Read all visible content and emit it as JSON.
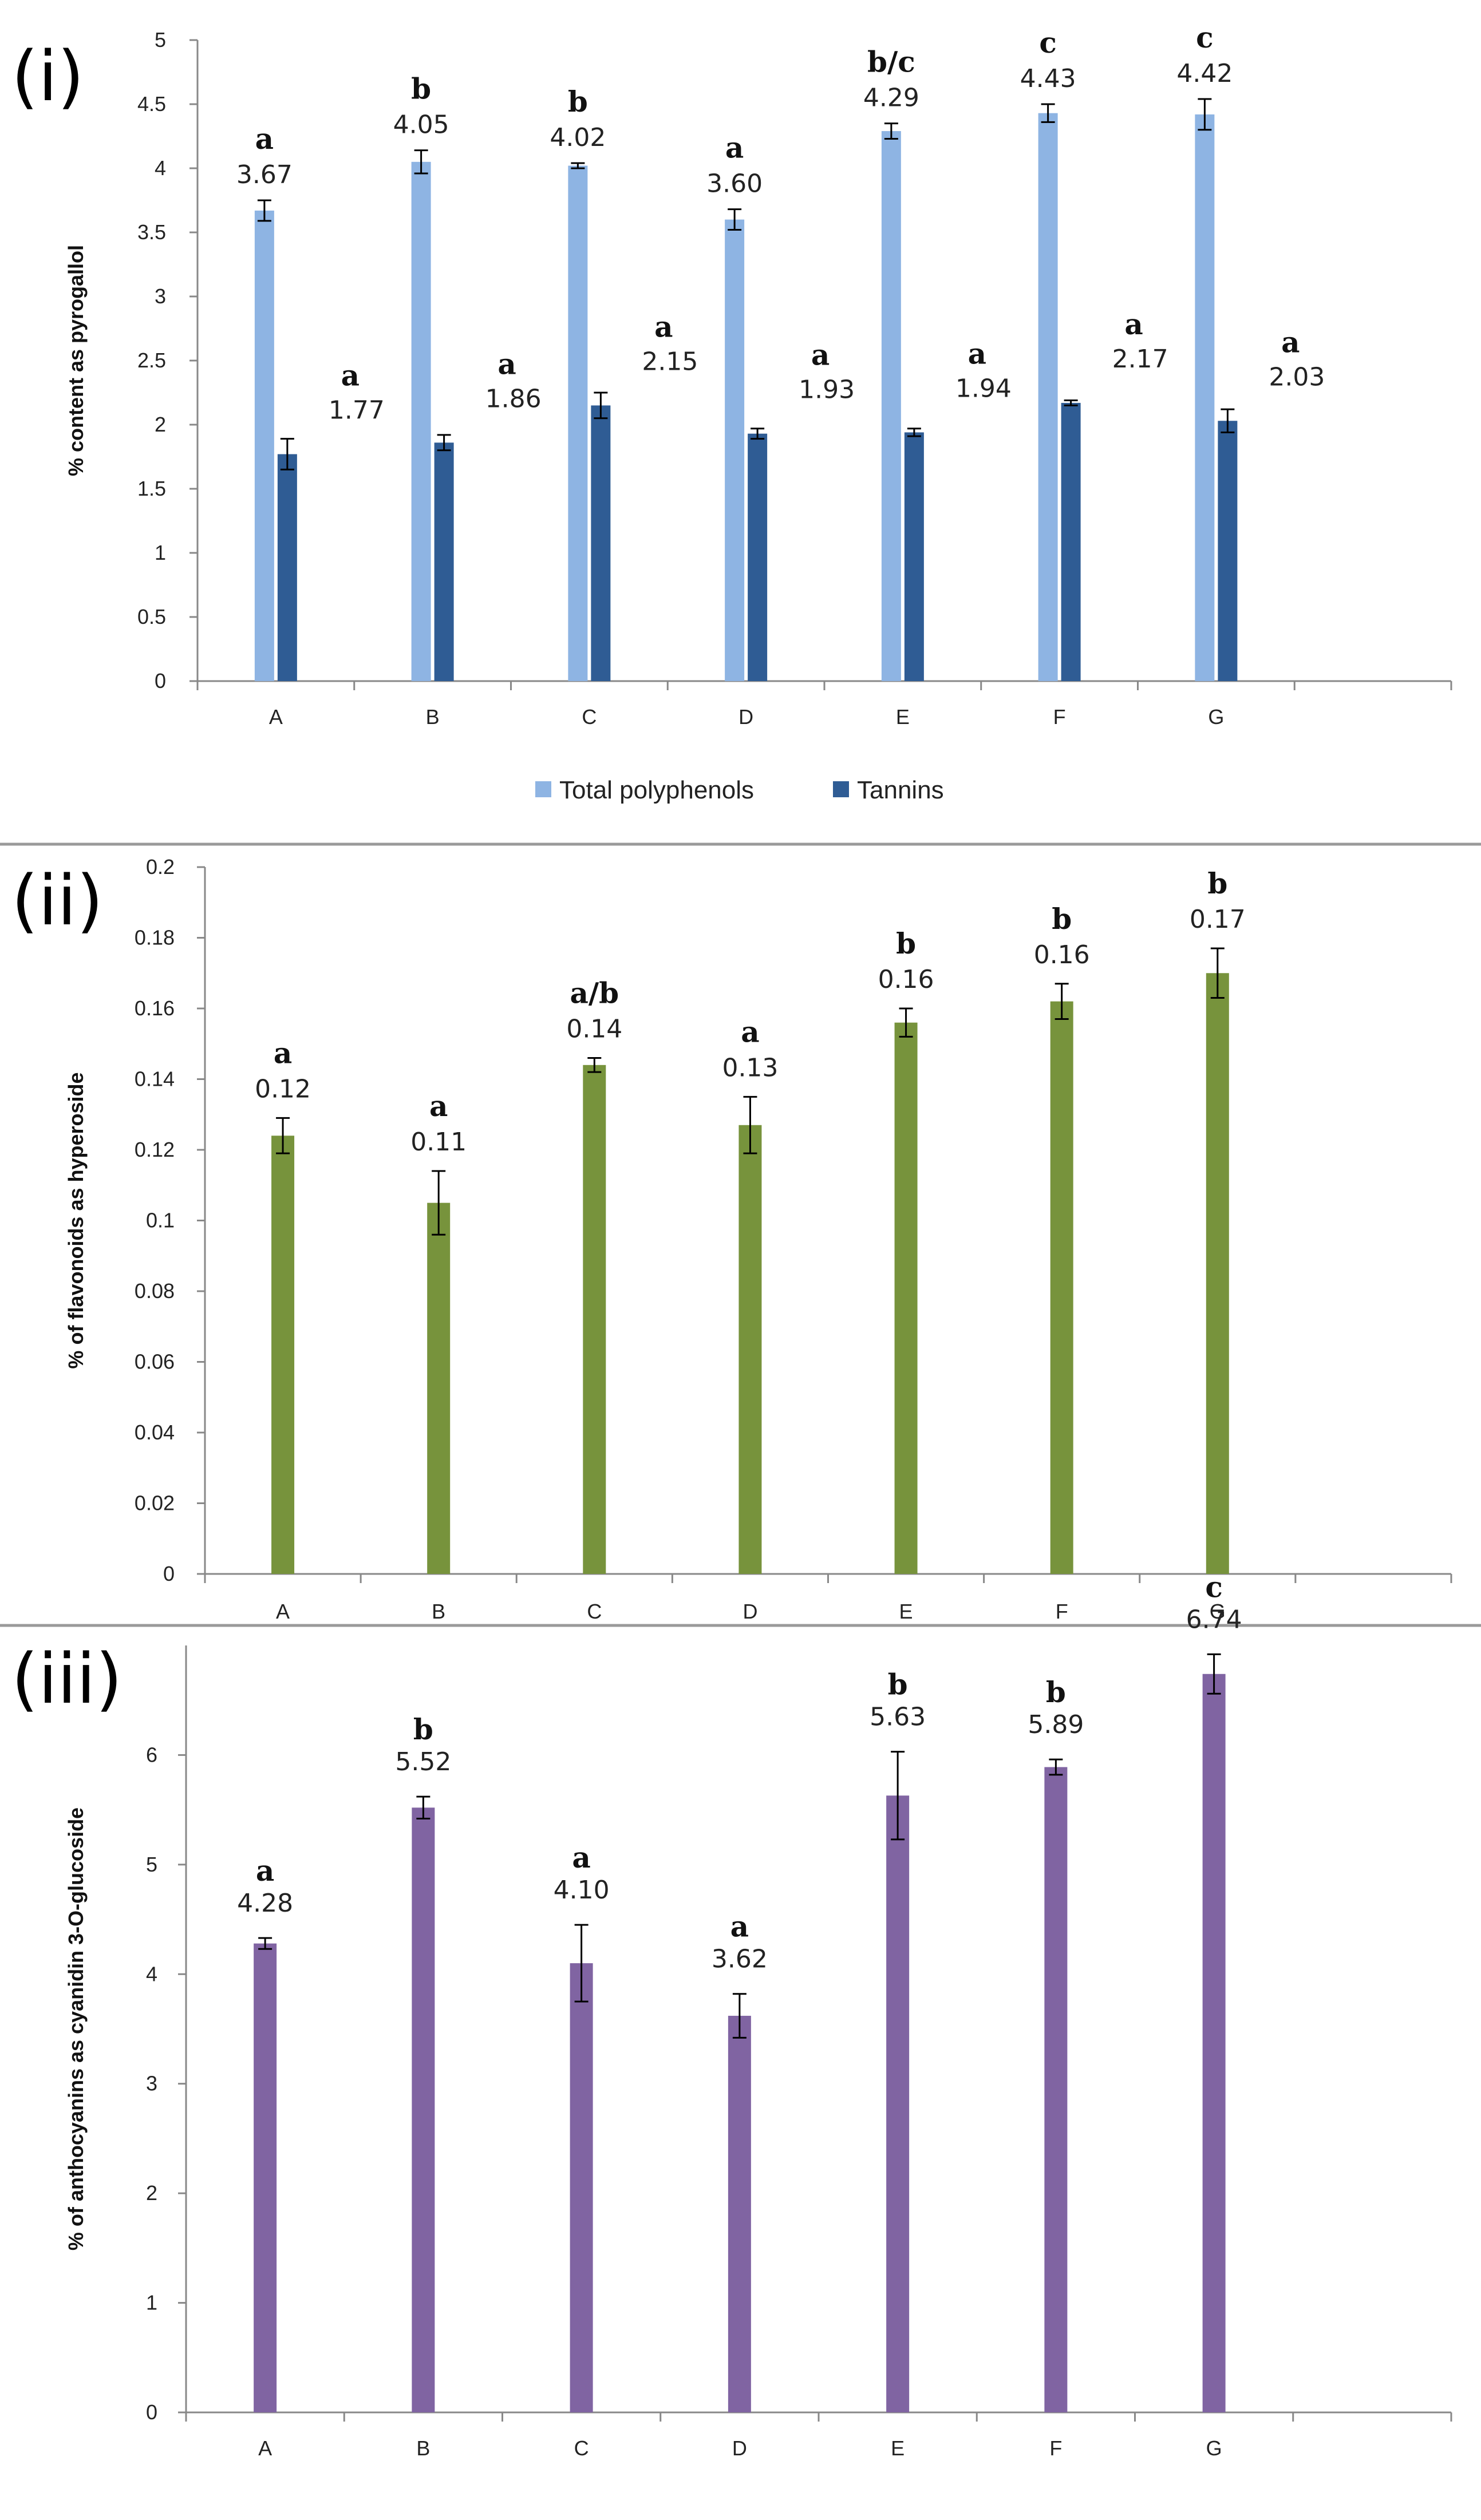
{
  "chart_data": [
    {
      "panel": "(i)",
      "type": "bar",
      "title": "",
      "xlabel": "",
      "ylabel": "% content as pyrogallol",
      "ylim": [
        0,
        5
      ],
      "ytick_step": 0.5,
      "ytick_labels": [
        "0",
        "0.5",
        "1",
        "1.5",
        "2",
        "2.5",
        "3",
        "3.5",
        "4",
        "4.5",
        "5"
      ],
      "categories": [
        "A",
        "B",
        "C",
        "D",
        "E",
        "F",
        "G"
      ],
      "series": [
        {
          "name": "Total polyphenols",
          "color": "#8EB4E3",
          "values": [
            3.67,
            4.05,
            4.02,
            3.6,
            4.29,
            4.43,
            4.42
          ],
          "errors": [
            0.08,
            0.09,
            0.02,
            0.08,
            0.06,
            0.07,
            0.12
          ],
          "value_labels": [
            "3.67",
            "4.05",
            "4.02",
            "3.60",
            "4.29",
            "4.43",
            "4.42"
          ],
          "letters": [
            "a",
            "b",
            "b",
            "a",
            "b/c",
            "c",
            "c"
          ]
        },
        {
          "name": "Tannins",
          "color": "#2F5C94",
          "values": [
            1.77,
            1.86,
            2.15,
            1.93,
            1.94,
            2.17,
            2.03
          ],
          "errors": [
            0.12,
            0.06,
            0.1,
            0.04,
            0.03,
            0.02,
            0.09
          ],
          "value_labels": [
            "1.77",
            "1.86",
            "2.15",
            "1.93",
            "1.94",
            "2.17",
            "2.03"
          ],
          "letters": [
            "a",
            "a",
            "a",
            "a",
            "a",
            "a",
            "a"
          ]
        }
      ],
      "legend_position": "bottom"
    },
    {
      "panel": "(ii)",
      "type": "bar",
      "title": "",
      "xlabel": "",
      "ylabel": "% of flavonoids as hyperoside",
      "ylim": [
        0,
        0.2
      ],
      "ytick_step": 0.02,
      "ytick_labels": [
        "0",
        "0.02",
        "0.04",
        "0.06",
        "0.08",
        "0.1",
        "0.12",
        "0.14",
        "0.16",
        "0.18",
        "0.2"
      ],
      "categories": [
        "A",
        "B",
        "C",
        "D",
        "E",
        "F",
        "G"
      ],
      "series": [
        {
          "name": "Flavonoids",
          "color": "#77933C",
          "values": [
            0.124,
            0.105,
            0.144,
            0.127,
            0.156,
            0.162,
            0.17
          ],
          "errors": [
            0.005,
            0.009,
            0.002,
            0.008,
            0.004,
            0.005,
            0.007
          ],
          "value_labels": [
            "0.12",
            "0.11",
            "0.14",
            "0.13",
            "0.16",
            "0.16",
            "0.17"
          ],
          "letters": [
            "a",
            "a",
            "a/b",
            "a",
            "b",
            "b",
            "b"
          ]
        }
      ]
    },
    {
      "panel": "(iii)",
      "type": "bar",
      "title": "",
      "xlabel": "",
      "ylabel": "% of anthocyanins as cyanidin 3-O-glucoside",
      "ylim": [
        0,
        7
      ],
      "ytick_step": 1,
      "ytick_labels": [
        "0",
        "1",
        "2",
        "3",
        "4",
        "5",
        "6"
      ],
      "categories": [
        "A",
        "B",
        "C",
        "D",
        "E",
        "F",
        "G"
      ],
      "series": [
        {
          "name": "Anthocyanins",
          "color": "#8064A2",
          "values": [
            4.28,
            5.52,
            4.1,
            3.62,
            5.63,
            5.89,
            6.74
          ],
          "errors": [
            0.05,
            0.1,
            0.35,
            0.2,
            0.4,
            0.07,
            0.18
          ],
          "value_labels": [
            "4.28",
            "5.52",
            "4.10",
            "3.62",
            "5.63",
            "5.89",
            "6.74"
          ],
          "letters": [
            "a",
            "b",
            "a",
            "a",
            "b",
            "b",
            "c"
          ]
        }
      ]
    }
  ]
}
